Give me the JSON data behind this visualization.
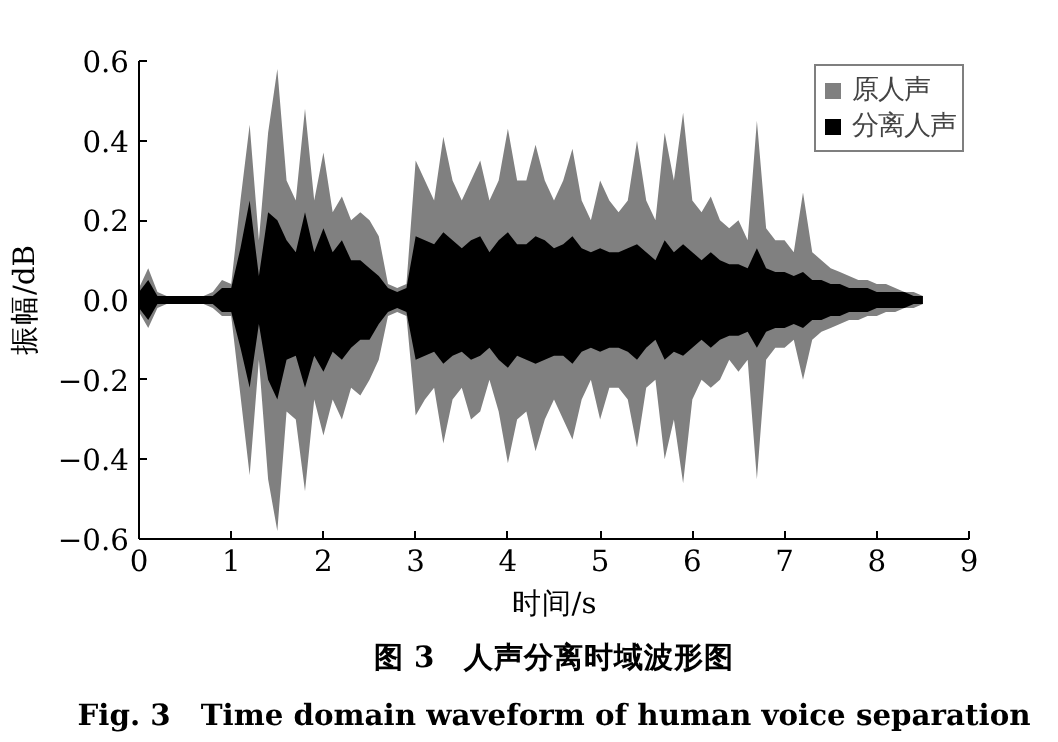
{
  "chart_data": {
    "type": "area",
    "xlabel": "时间/s",
    "ylabel": "振幅/dB",
    "annotations": [
      "图 3　人声分离时域波形图",
      "Fig. 3　Time domain waveform of human voice separation"
    ],
    "x": [
      0,
      0.1,
      0.2,
      0.3,
      0.4,
      0.5,
      0.6,
      0.7,
      0.8,
      0.9,
      1.0,
      1.1,
      1.2,
      1.3,
      1.4,
      1.5,
      1.6,
      1.7,
      1.8,
      1.9,
      2.0,
      2.1,
      2.2,
      2.3,
      2.4,
      2.5,
      2.6,
      2.7,
      2.8,
      2.9,
      3.0,
      3.1,
      3.2,
      3.3,
      3.4,
      3.5,
      3.6,
      3.7,
      3.8,
      3.9,
      4.0,
      4.1,
      4.2,
      4.3,
      4.4,
      4.5,
      4.6,
      4.7,
      4.8,
      4.9,
      5.0,
      5.1,
      5.2,
      5.3,
      5.4,
      5.5,
      5.6,
      5.7,
      5.8,
      5.9,
      6.0,
      6.1,
      6.2,
      6.3,
      6.4,
      6.5,
      6.6,
      6.7,
      6.8,
      6.9,
      7.0,
      7.1,
      7.2,
      7.3,
      7.4,
      7.5,
      7.6,
      7.7,
      7.8,
      7.9,
      8.0,
      8.1,
      8.2,
      8.3,
      8.4,
      8.5
    ],
    "series": [
      {
        "name": "原人声",
        "color": "#808080",
        "values": [
          0.03,
          0.08,
          0.02,
          0.01,
          0.01,
          0.01,
          0.01,
          0.01,
          0.02,
          0.05,
          0.04,
          0.25,
          0.44,
          0.15,
          0.42,
          0.58,
          0.3,
          0.25,
          0.48,
          0.25,
          0.37,
          0.22,
          0.26,
          0.2,
          0.22,
          0.2,
          0.16,
          0.04,
          0.03,
          0.04,
          0.35,
          0.3,
          0.25,
          0.41,
          0.3,
          0.25,
          0.3,
          0.35,
          0.25,
          0.3,
          0.43,
          0.3,
          0.3,
          0.39,
          0.3,
          0.25,
          0.3,
          0.38,
          0.25,
          0.2,
          0.3,
          0.25,
          0.22,
          0.25,
          0.4,
          0.25,
          0.2,
          0.42,
          0.3,
          0.47,
          0.25,
          0.22,
          0.26,
          0.2,
          0.18,
          0.2,
          0.15,
          0.45,
          0.18,
          0.15,
          0.15,
          0.12,
          0.27,
          0.12,
          0.1,
          0.08,
          0.07,
          0.06,
          0.05,
          0.05,
          0.04,
          0.04,
          0.03,
          0.02,
          0.02,
          0.01
        ]
      },
      {
        "color": "#808080",
        "values": [
          -0.03,
          -0.07,
          -0.02,
          -0.01,
          -0.01,
          -0.01,
          -0.01,
          -0.01,
          -0.02,
          -0.04,
          -0.04,
          -0.24,
          -0.44,
          -0.15,
          -0.45,
          -0.58,
          -0.28,
          -0.3,
          -0.48,
          -0.25,
          -0.34,
          -0.25,
          -0.3,
          -0.22,
          -0.24,
          -0.2,
          -0.15,
          -0.04,
          -0.03,
          -0.04,
          -0.29,
          -0.25,
          -0.22,
          -0.36,
          -0.25,
          -0.22,
          -0.3,
          -0.28,
          -0.2,
          -0.28,
          -0.41,
          -0.3,
          -0.28,
          -0.38,
          -0.3,
          -0.25,
          -0.3,
          -0.35,
          -0.25,
          -0.2,
          -0.3,
          -0.22,
          -0.22,
          -0.25,
          -0.37,
          -0.22,
          -0.2,
          -0.4,
          -0.3,
          -0.46,
          -0.25,
          -0.2,
          -0.22,
          -0.2,
          -0.15,
          -0.18,
          -0.15,
          -0.45,
          -0.15,
          -0.12,
          -0.12,
          -0.1,
          -0.2,
          -0.1,
          -0.08,
          -0.07,
          -0.06,
          -0.05,
          -0.05,
          -0.04,
          -0.04,
          -0.03,
          -0.03,
          -0.02,
          -0.02,
          -0.01
        ]
      },
      {
        "name": "分离人声",
        "color": "#000000",
        "values": [
          0.02,
          0.05,
          0.01,
          0.01,
          0.01,
          0.01,
          0.01,
          0.01,
          0.01,
          0.03,
          0.03,
          0.13,
          0.25,
          0.06,
          0.22,
          0.2,
          0.15,
          0.12,
          0.22,
          0.12,
          0.18,
          0.12,
          0.15,
          0.1,
          0.1,
          0.08,
          0.06,
          0.03,
          0.02,
          0.03,
          0.16,
          0.15,
          0.14,
          0.17,
          0.15,
          0.13,
          0.15,
          0.16,
          0.12,
          0.15,
          0.17,
          0.14,
          0.14,
          0.16,
          0.15,
          0.13,
          0.14,
          0.16,
          0.13,
          0.12,
          0.13,
          0.12,
          0.12,
          0.13,
          0.14,
          0.12,
          0.1,
          0.15,
          0.12,
          0.14,
          0.12,
          0.1,
          0.12,
          0.1,
          0.09,
          0.09,
          0.08,
          0.13,
          0.08,
          0.07,
          0.07,
          0.06,
          0.07,
          0.05,
          0.05,
          0.04,
          0.04,
          0.03,
          0.03,
          0.03,
          0.02,
          0.02,
          0.02,
          0.02,
          0.01,
          0.01
        ]
      },
      {
        "color": "#000000",
        "values": [
          -0.02,
          -0.05,
          -0.01,
          -0.01,
          -0.01,
          -0.01,
          -0.01,
          -0.01,
          -0.01,
          -0.03,
          -0.03,
          -0.12,
          -0.22,
          -0.06,
          -0.2,
          -0.25,
          -0.15,
          -0.14,
          -0.22,
          -0.14,
          -0.18,
          -0.13,
          -0.15,
          -0.12,
          -0.1,
          -0.1,
          -0.06,
          -0.03,
          -0.02,
          -0.03,
          -0.15,
          -0.14,
          -0.13,
          -0.16,
          -0.14,
          -0.13,
          -0.15,
          -0.14,
          -0.12,
          -0.15,
          -0.17,
          -0.14,
          -0.15,
          -0.16,
          -0.15,
          -0.14,
          -0.14,
          -0.16,
          -0.13,
          -0.12,
          -0.13,
          -0.12,
          -0.12,
          -0.13,
          -0.15,
          -0.12,
          -0.1,
          -0.15,
          -0.13,
          -0.14,
          -0.12,
          -0.1,
          -0.12,
          -0.1,
          -0.09,
          -0.09,
          -0.08,
          -0.12,
          -0.08,
          -0.07,
          -0.07,
          -0.06,
          -0.07,
          -0.05,
          -0.05,
          -0.04,
          -0.04,
          -0.03,
          -0.03,
          -0.03,
          -0.02,
          -0.02,
          -0.02,
          -0.02,
          -0.01,
          -0.01
        ]
      }
    ],
    "xlim": [
      0,
      9
    ],
    "ylim": [
      -0.6,
      0.6
    ],
    "xticks": [
      0,
      1,
      2,
      3,
      4,
      5,
      6,
      7,
      8,
      9
    ],
    "yticks": [
      -0.6,
      -0.4,
      -0.2,
      {
        "value": 0,
        "label": "0.0"
      },
      0.2,
      0.4,
      0.6
    ],
    "grid": false,
    "legend": "top right"
  }
}
